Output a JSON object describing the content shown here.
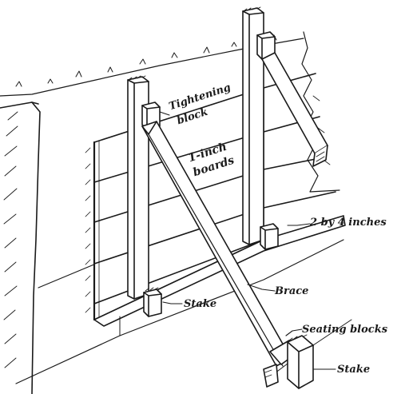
{
  "labels": {
    "tightening_block_1": "Tightening",
    "tightening_block_2": "block",
    "boards_1": "1-inch",
    "boards_2": "boards",
    "lumber": "2 by 4 inches",
    "brace": "Brace",
    "stake_left": "Stake",
    "seating_blocks": "Seating blocks",
    "stake_right": "Stake"
  },
  "colors": {
    "ink": "#1a1a1a",
    "paper": "#ffffff"
  }
}
